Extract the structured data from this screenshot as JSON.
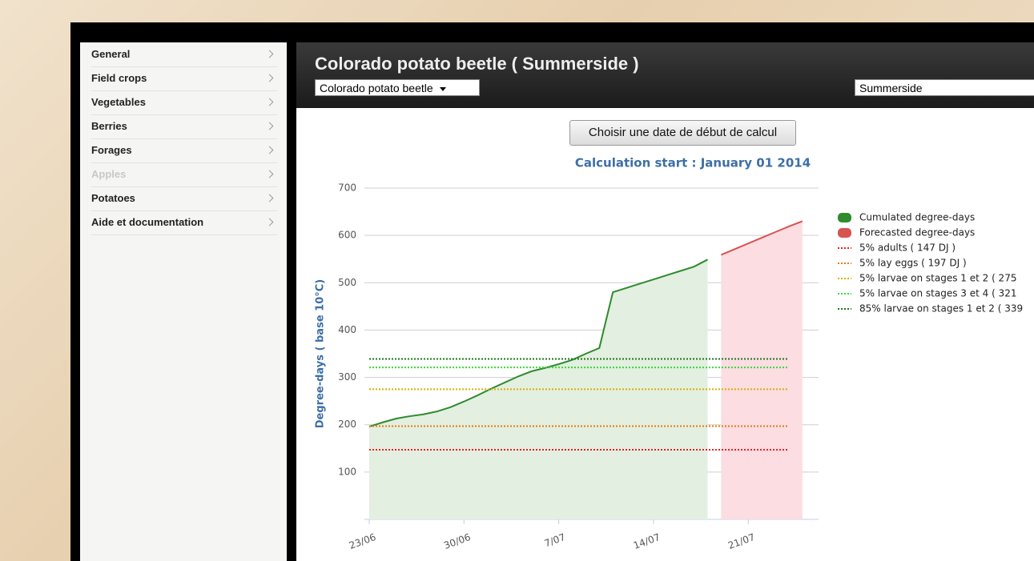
{
  "sidebar": {
    "items": [
      "General",
      "Field crops",
      "Vegetables",
      "Berries",
      "Forages",
      "Apples",
      "Potatoes",
      "Aide et documentation"
    ]
  },
  "header": {
    "title": "Colorado potato beetle ( Summerside )",
    "species_select": "Colorado potato beetle",
    "location_select": "Summerside"
  },
  "button": "Choisir une date de début de calcul",
  "chart_data": {
    "type": "area",
    "title": "Calculation start : January 01 2014",
    "y_label": "Degree-days ( base 10°C)",
    "categories": [
      "23/06",
      null,
      null,
      null,
      null,
      null,
      null,
      "30/06",
      null,
      null,
      null,
      null,
      null,
      null,
      "7/07",
      null,
      null,
      null,
      null,
      null,
      null,
      "14/07",
      null,
      null,
      null,
      null,
      null,
      null,
      "21/07",
      null,
      null,
      null,
      null
    ],
    "series": [
      {
        "name": "Cumulated degree-days",
        "color": "#2e8b2e",
        "fill": "#e3efe0",
        "values": [
          196,
          205,
          213,
          218,
          222,
          228,
          237,
          249,
          262,
          276,
          289,
          302,
          313,
          320,
          328,
          337,
          350,
          362,
          480,
          489,
          498,
          507,
          516,
          525,
          534,
          549,
          null,
          null,
          null,
          null,
          null,
          null,
          null
        ]
      },
      {
        "name": "Forecasted degree-days",
        "color": "#d9534f",
        "fill": "#fbdde2",
        "values": [
          null,
          null,
          null,
          null,
          null,
          null,
          null,
          null,
          null,
          null,
          null,
          null,
          null,
          null,
          null,
          null,
          null,
          null,
          null,
          null,
          null,
          null,
          null,
          null,
          null,
          null,
          559,
          571,
          583,
          595,
          607,
          619,
          630
        ]
      }
    ],
    "reference_lines": [
      {
        "name": "5% adults ( 147 DJ )",
        "color": "#e8202a",
        "value": 147
      },
      {
        "name": "5% lay eggs ( 197 DJ )",
        "color": "#e87a10",
        "value": 197
      },
      {
        "name": "5% larvae on stages 1 et 2 ( 275",
        "color": "#d8b000",
        "value": 275
      },
      {
        "name": "5% larvae on stages 3 et 4 ( 321",
        "color": "#33dd33",
        "value": 321
      },
      {
        "name": "85% larvae on stages 1 et 2 ( 339",
        "color": "#1a7a1a",
        "value": 339
      }
    ],
    "ylim": [
      0,
      700
    ],
    "yticks": [
      100,
      200,
      300,
      400,
      500,
      600,
      700
    ],
    "grid": true,
    "legend": "right"
  }
}
